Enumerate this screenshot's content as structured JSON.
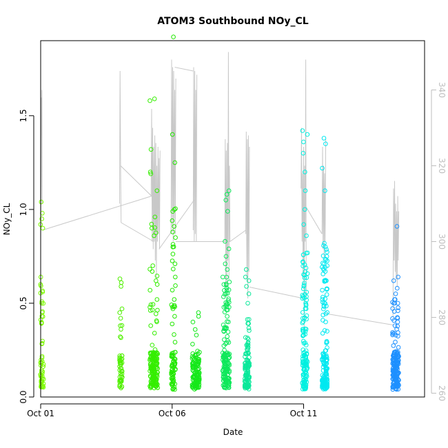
{
  "chart_data": {
    "type": "scatter",
    "title": "ATOM3 Southbound NOy_CL",
    "xlabel": "Date",
    "ylabel": "NOy_CL",
    "x_range_days": [
      0.0,
      14.6
    ],
    "x_ticks": [
      {
        "day": 0,
        "label": "Oct 01"
      },
      {
        "day": 5,
        "label": "Oct 06"
      },
      {
        "day": 10,
        "label": "Oct 11"
      }
    ],
    "ylim": [
      0.0,
      1.9
    ],
    "y_ticks": [
      {
        "value": 0.0,
        "label": "0.0"
      },
      {
        "value": 0.5,
        "label": "0.5"
      },
      {
        "value": 1.0,
        "label": "1.0"
      },
      {
        "value": 1.5,
        "label": "1.5"
      }
    ],
    "right_axis": {
      "ylim": [
        259,
        353
      ],
      "ticks": [
        {
          "value": 260,
          "label": "260"
        },
        {
          "value": 280,
          "label": "280"
        },
        {
          "value": 300,
          "label": "300"
        },
        {
          "value": 320,
          "label": "320"
        },
        {
          "value": 340,
          "label": "340"
        }
      ],
      "color": "#bebebe"
    },
    "overlay_line": {
      "name": "",
      "color": "#c8c8c8",
      "points": [
        [
          0.0,
          300
        ],
        [
          0.02,
          318
        ],
        [
          0.03,
          338
        ],
        [
          0.04,
          328
        ],
        [
          0.05,
          340
        ],
        [
          0.06,
          310
        ],
        [
          3.0,
          310
        ],
        [
          3.02,
          345
        ],
        [
          3.04,
          320
        ],
        [
          3.06,
          305
        ],
        [
          4.2,
          312
        ],
        [
          4.22,
          335
        ],
        [
          4.24,
          300
        ],
        [
          4.26,
          330
        ],
        [
          4.28,
          298
        ],
        [
          4.3,
          325
        ],
        [
          4.32,
          300
        ],
        [
          4.34,
          328
        ],
        [
          4.36,
          295
        ],
        [
          4.38,
          326
        ],
        [
          4.4,
          290
        ],
        [
          4.42,
          320
        ],
        [
          4.44,
          300
        ],
        [
          4.46,
          325
        ],
        [
          4.48,
          302
        ],
        [
          4.5,
          322
        ],
        [
          4.52,
          298
        ],
        [
          4.54,
          324
        ],
        [
          4.96,
          302
        ],
        [
          4.98,
          348
        ],
        [
          5.0,
          304
        ],
        [
          5.02,
          346
        ],
        [
          5.04,
          300
        ],
        [
          5.06,
          345
        ],
        [
          5.08,
          306
        ],
        [
          5.1,
          340
        ],
        [
          5.12,
          302
        ],
        [
          5.14,
          343
        ],
        [
          5.8,
          303
        ],
        [
          5.82,
          346
        ],
        [
          5.84,
          300
        ],
        [
          5.86,
          345
        ],
        [
          5.88,
          302
        ],
        [
          5.9,
          340
        ],
        [
          5.92,
          300
        ],
        [
          5.94,
          344
        ],
        [
          7.0,
          300
        ],
        [
          7.02,
          327
        ],
        [
          7.04,
          288
        ],
        [
          7.06,
          324
        ],
        [
          7.08,
          285
        ],
        [
          7.1,
          326
        ],
        [
          7.12,
          295
        ],
        [
          7.14,
          350
        ],
        [
          7.16,
          290
        ],
        [
          7.18,
          320
        ],
        [
          7.2,
          300
        ],
        [
          7.8,
          302
        ],
        [
          7.82,
          329
        ],
        [
          7.84,
          290
        ],
        [
          7.86,
          327
        ],
        [
          7.88,
          285
        ],
        [
          7.9,
          328
        ],
        [
          7.92,
          292
        ],
        [
          7.94,
          325
        ],
        [
          9.9,
          314
        ],
        [
          9.92,
          330
        ],
        [
          9.94,
          300
        ],
        [
          9.96,
          318
        ],
        [
          9.98,
          290
        ],
        [
          10.0,
          325
        ],
        [
          10.02,
          276
        ],
        [
          10.04,
          320
        ],
        [
          10.06,
          300
        ],
        [
          10.08,
          348
        ],
        [
          10.1,
          285
        ],
        [
          10.7,
          302
        ],
        [
          10.72,
          325
        ],
        [
          10.74,
          298
        ],
        [
          10.76,
          320
        ],
        [
          10.78,
          296
        ],
        [
          10.8,
          318
        ],
        [
          10.82,
          300
        ],
        [
          10.84,
          327
        ],
        [
          13.4,
          280
        ],
        [
          13.42,
          314
        ],
        [
          13.44,
          295
        ],
        [
          13.46,
          316
        ],
        [
          13.48,
          292
        ],
        [
          13.5,
          310
        ],
        [
          13.52,
          290
        ],
        [
          13.54,
          308
        ],
        [
          13.56,
          288
        ],
        [
          13.58,
          312
        ],
        [
          13.6,
          295
        ],
        [
          13.62,
          308
        ]
      ]
    },
    "connectors": [
      [
        [
          0.06,
          303
        ],
        [
          4.22,
          312
        ]
      ],
      [
        [
          3.04,
          320
        ],
        [
          4.22,
          312
        ]
      ],
      [
        [
          3.06,
          305
        ],
        [
          4.3,
          300
        ]
      ],
      [
        [
          4.5,
          298
        ],
        [
          5.84,
          311
        ]
      ],
      [
        [
          5.1,
          346
        ],
        [
          5.8,
          345
        ]
      ],
      [
        [
          5.14,
          300
        ],
        [
          7.2,
          300
        ]
      ],
      [
        [
          7.2,
          300
        ],
        [
          7.8,
          303
        ]
      ],
      [
        [
          7.94,
          288
        ],
        [
          10.0,
          285
        ]
      ],
      [
        [
          10.02,
          310
        ],
        [
          10.7,
          302
        ]
      ],
      [
        [
          10.84,
          281
        ],
        [
          13.4,
          278
        ]
      ]
    ],
    "series": [
      {
        "color": "#7cfc00",
        "x_center": 0.05,
        "x_jitter": 0.06,
        "n": 60,
        "seed": 11,
        "ymax": 1.04,
        "low_frac": 0.35,
        "high_vals": [
          1.04,
          0.98,
          0.95,
          0.92,
          0.9,
          0.64,
          0.6,
          0.56,
          0.5,
          0.45
        ]
      },
      {
        "color": "#50f000",
        "x_center": 3.05,
        "x_jitter": 0.05,
        "n": 55,
        "seed": 23,
        "ymax": 0.63,
        "low_frac": 0.55,
        "high_vals": [
          0.63,
          0.61,
          0.59,
          0.47,
          0.45,
          0.42,
          0.38
        ]
      },
      {
        "color": "#35ee00",
        "x_center": 4.3,
        "x_jitter": 0.15,
        "n": 170,
        "seed": 31,
        "ymax": 1.59,
        "low_frac": 0.65,
        "high_vals": [
          1.59,
          1.58,
          1.32,
          1.2,
          1.19,
          1.1,
          0.96,
          0.9,
          0.86,
          0.7,
          0.6,
          0.52
        ]
      },
      {
        "color": "#22e800",
        "x_center": 5.05,
        "x_jitter": 0.08,
        "n": 90,
        "seed": 47,
        "ymax": 1.92,
        "low_frac": 0.55,
        "high_vals": [
          1.92,
          1.4,
          1.25,
          1.0,
          0.94,
          0.88,
          0.85,
          0.8,
          0.71,
          0.64,
          0.57,
          0.52,
          0.47
        ]
      },
      {
        "color": "#15e81a",
        "x_center": 5.9,
        "x_jitter": 0.14,
        "n": 120,
        "seed": 53,
        "ymax": 0.45,
        "low_frac": 0.7,
        "high_vals": [
          0.45,
          0.43,
          0.4,
          0.36,
          0.33
        ]
      },
      {
        "color": "#0ee85a",
        "x_center": 7.05,
        "x_jitter": 0.13,
        "n": 170,
        "seed": 61,
        "ymax": 1.1,
        "low_frac": 0.4,
        "high_vals": [
          1.1,
          1.08,
          1.05,
          0.99,
          0.83,
          0.79,
          0.75,
          0.71,
          0.68,
          0.64,
          0.6
        ]
      },
      {
        "color": "#0ae89a",
        "x_center": 7.85,
        "x_jitter": 0.09,
        "n": 110,
        "seed": 71,
        "ymax": 0.68,
        "low_frac": 0.45,
        "high_vals": [
          0.68,
          0.64,
          0.62,
          0.59,
          0.55,
          0.5
        ]
      },
      {
        "color": "#00f0e0",
        "x_center": 10.05,
        "x_jitter": 0.1,
        "n": 150,
        "seed": 83,
        "ymax": 1.42,
        "low_frac": 0.4,
        "high_vals": [
          1.42,
          1.4,
          1.36,
          1.3,
          1.2,
          1.1,
          1.0,
          0.92,
          0.86,
          0.72,
          0.65
        ]
      },
      {
        "color": "#00e8f0",
        "x_center": 10.8,
        "x_jitter": 0.1,
        "n": 160,
        "seed": 97,
        "ymax": 1.38,
        "low_frac": 0.45,
        "high_vals": [
          1.38,
          1.35,
          1.22,
          1.1,
          0.82,
          0.8,
          0.75,
          0.7,
          0.62
        ]
      },
      {
        "color": "#1e90ff",
        "x_center": 13.5,
        "x_jitter": 0.12,
        "n": 190,
        "seed": 101,
        "ymax": 0.91,
        "low_frac": 0.6,
        "high_vals": [
          0.91,
          0.64,
          0.62,
          0.58,
          0.55,
          0.52,
          0.5,
          0.46,
          0.42,
          0.4
        ]
      }
    ]
  }
}
